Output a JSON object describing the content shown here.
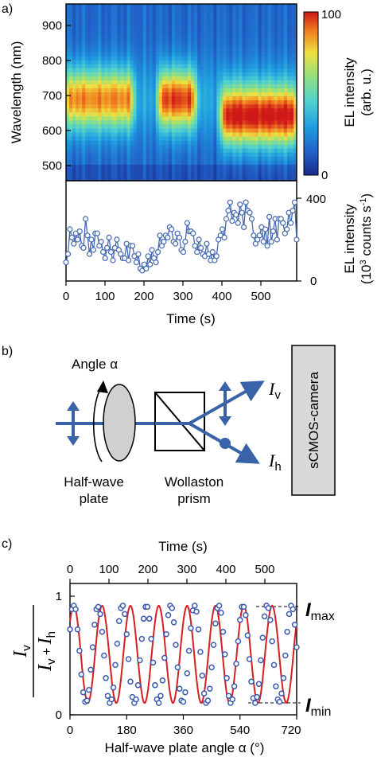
{
  "panels": {
    "a": "a)",
    "b": "b)",
    "c": "c)"
  },
  "heatmap": {
    "ylabel": "Wavelength (nm)",
    "y_ticks": [
      "500",
      "600",
      "700",
      "800",
      "900"
    ],
    "colorbar_max": "100",
    "colorbar_min": "0",
    "colorbar_label_1": "EL intensity",
    "colorbar_label_2": "(arb. u.)",
    "colormap": [
      "#1b2a8a",
      "#2060c8",
      "#20a0e0",
      "#50d0d0",
      "#90e080",
      "#f0e040",
      "#f08020",
      "#d01818"
    ]
  },
  "timetrace": {
    "right_ticks": [
      "400",
      "0"
    ],
    "ylabel_1": "EL intensity",
    "ylabel_2a": "(10",
    "ylabel_2b": "3",
    "ylabel_2c": " counts s",
    "ylabel_2d": "-1",
    "ylabel_2e": ")",
    "x_ticks": [
      "0",
      "100",
      "200",
      "300",
      "400",
      "500"
    ],
    "xlabel": "Time (s)",
    "series_color": "#4468b0"
  },
  "schematic": {
    "angle_label": "Angle α",
    "hwp_1": "Half-wave",
    "hwp_2": "plate",
    "wp_1": "Wollaston",
    "wp_2": "prism",
    "camera": "sCMOS-camera",
    "iv_main": "I",
    "iv_sub": "v",
    "ih_main": "I",
    "ih_sub": "h",
    "beam_color": "#3a62a8"
  },
  "polarization": {
    "top_label": "Time (s)",
    "top_ticks": [
      "0",
      "100",
      "200",
      "300",
      "400",
      "500"
    ],
    "x_ticks": [
      "0",
      "180",
      "360",
      "540",
      "720"
    ],
    "xlabel": "Half-wave plate angle α (°)",
    "y_ticks": [
      "1",
      "0"
    ],
    "num_main_1": "I",
    "num_sub_1": "v",
    "den_main_1": "I",
    "den_sub_1": "v",
    "den_plus": " + ",
    "den_main_2": "I",
    "den_sub_2": "h",
    "imax_main": "I",
    "imax_sub": "max",
    "imin_main": "I",
    "imin_sub": "min",
    "fit_color": "#d42020",
    "point_color": "#3a5ab0"
  },
  "chart_data": [
    {
      "type": "heatmap",
      "title": "",
      "xlabel": "Time (s)",
      "ylabel": "Wavelength (nm)",
      "xlim": [
        0,
        590
      ],
      "ylim": [
        470,
        970
      ],
      "colorbar_label": "EL intensity (arb. u.)",
      "colorbar_range": [
        0,
        100
      ],
      "intense_bands": [
        {
          "t_start": 0,
          "t_end": 170,
          "center_nm": 700,
          "level": 55
        },
        {
          "t_start": 240,
          "t_end": 330,
          "center_nm": 700,
          "level": 65
        },
        {
          "t_start": 400,
          "t_end": 590,
          "center_nm": 650,
          "level": 75
        }
      ]
    },
    {
      "type": "line",
      "title": "",
      "xlabel": "Time (s)",
      "ylabel": "EL intensity (10^3 counts s^-1)",
      "xlim": [
        0,
        590
      ],
      "ylim": [
        0,
        420
      ],
      "series": [
        {
          "x": [
            0,
            5,
            10,
            15,
            20,
            25,
            30,
            35,
            40,
            45,
            50,
            55,
            60,
            65,
            70,
            75,
            80,
            85,
            90,
            95,
            100,
            105,
            110,
            115,
            120,
            125,
            130,
            135,
            140,
            145,
            150,
            155,
            160,
            165,
            170,
            175,
            180,
            185,
            190,
            195,
            200,
            205,
            210,
            215,
            220,
            225,
            230,
            235,
            240,
            245,
            250,
            255,
            260,
            265,
            270,
            275,
            280,
            285,
            290,
            295,
            300,
            305,
            310,
            315,
            320,
            325,
            330,
            335,
            340,
            345,
            350,
            355,
            360,
            365,
            370,
            375,
            380,
            385,
            390,
            395,
            400,
            405,
            410,
            415,
            420,
            425,
            430,
            435,
            440,
            445,
            450,
            455,
            460,
            465,
            470,
            475,
            480,
            485,
            490,
            495,
            500,
            505,
            510,
            515,
            520,
            525,
            530,
            535,
            540,
            545,
            550,
            555,
            560,
            565,
            570,
            575,
            580,
            585,
            590
          ],
          "y": [
            90,
            130,
            250,
            210,
            180,
            230,
            200,
            240,
            170,
            160,
            300,
            220,
            130,
            200,
            150,
            230,
            230,
            170,
            190,
            140,
            110,
            160,
            210,
            140,
            100,
            160,
            200,
            150,
            130,
            110,
            110,
            180,
            100,
            170,
            170,
            120,
            90,
            130,
            60,
            50,
            80,
            60,
            120,
            80,
            150,
            110,
            90,
            140,
            220,
            170,
            190,
            220,
            210,
            260,
            250,
            190,
            180,
            230,
            210,
            150,
            140,
            190,
            280,
            240,
            240,
            230,
            170,
            140,
            200,
            160,
            130,
            120,
            180,
            130,
            100,
            140,
            100,
            120,
            200,
            220,
            250,
            210,
            300,
            340,
            380,
            290,
            330,
            320,
            280,
            370,
            330,
            260,
            380,
            340,
            330,
            300,
            220,
            180,
            200,
            220,
            260,
            190,
            250,
            170,
            310,
            190,
            240,
            300,
            200,
            300,
            300,
            280,
            230,
            250,
            330,
            280,
            340,
            380,
            200
          ]
        }
      ]
    },
    {
      "type": "scatter",
      "title": "",
      "xlabel": "Half-wave plate angle α (°)",
      "ylabel": "I_v / (I_v + I_h)",
      "xlim": [
        0,
        720
      ],
      "ylim": [
        0,
        1
      ],
      "secondary_x": {
        "label": "Time (s)",
        "ticks": [
          0,
          100,
          200,
          300,
          400,
          500
        ]
      },
      "fit": {
        "form": "sinusoid",
        "period_deg": 90,
        "peak_x_deg": 12,
        "max": 0.92,
        "min": 0.1
      },
      "annotations": [
        "I_max",
        "I_min"
      ],
      "series": [
        {
          "name": "",
          "x": [
            0,
            6,
            12,
            18,
            24,
            30,
            36,
            42,
            48,
            54,
            60,
            66,
            72,
            78,
            84,
            90,
            96,
            102,
            108,
            114,
            120,
            126,
            132,
            138,
            144,
            150,
            156,
            162,
            168,
            174,
            180,
            186,
            192,
            198,
            204,
            210,
            216,
            222,
            228,
            234,
            240,
            246,
            252,
            258,
            264,
            270,
            276,
            282,
            288,
            294,
            300,
            306,
            312,
            318,
            324,
            330,
            336,
            342,
            348,
            354,
            360,
            366,
            372,
            378,
            384,
            390,
            396,
            402,
            408,
            414,
            420,
            426,
            432,
            438,
            444,
            450,
            456,
            462,
            468,
            474,
            480,
            486,
            492,
            498,
            504,
            510,
            516,
            522,
            528,
            534,
            540,
            546,
            552,
            558,
            564,
            570,
            576,
            582,
            588,
            594,
            600,
            606,
            612,
            618,
            624,
            630,
            636,
            642,
            648,
            654,
            660,
            666,
            672,
            678,
            684,
            690,
            696,
            702,
            708,
            714,
            720
          ],
          "y": [
            0.72,
            0.89,
            0.92,
            0.89,
            0.72,
            0.54,
            0.34,
            0.19,
            0.11,
            0.12,
            0.21,
            0.38,
            0.57,
            0.76,
            0.89,
            0.91,
            0.85,
            0.7,
            0.5,
            0.31,
            0.16,
            0.1,
            0.13,
            0.23,
            0.42,
            0.6,
            0.79,
            0.9,
            0.92,
            0.85,
            0.68,
            0.47,
            0.28,
            0.15,
            0.1,
            0.13,
            0.25,
            0.46,
            0.64,
            0.81,
            0.91,
            0.91,
            0.81,
            0.64,
            0.44,
            0.25,
            0.13,
            0.1,
            0.16,
            0.29,
            0.48,
            0.68,
            0.84,
            0.92,
            0.9,
            0.78,
            0.59,
            0.4,
            0.22,
            0.12,
            0.11,
            0.19,
            0.35,
            0.54,
            0.73,
            0.88,
            0.92,
            0.87,
            0.72,
            0.53,
            0.33,
            0.18,
            0.1,
            0.12,
            0.22,
            0.4,
            0.59,
            0.77,
            0.9,
            0.92,
            0.86,
            0.7,
            0.51,
            0.31,
            0.16,
            0.1,
            0.13,
            0.24,
            0.43,
            0.62,
            0.8,
            0.91,
            0.91,
            0.84,
            0.67,
            0.47,
            0.28,
            0.14,
            0.1,
            0.15,
            0.26,
            0.46,
            0.65,
            0.83,
            0.92,
            0.9,
            0.8,
            0.62,
            0.42,
            0.24,
            0.13,
            0.11,
            0.18,
            0.31,
            0.5,
            0.7,
            0.85,
            0.92,
            0.89,
            0.76,
            0.57
          ]
        }
      ]
    }
  ]
}
